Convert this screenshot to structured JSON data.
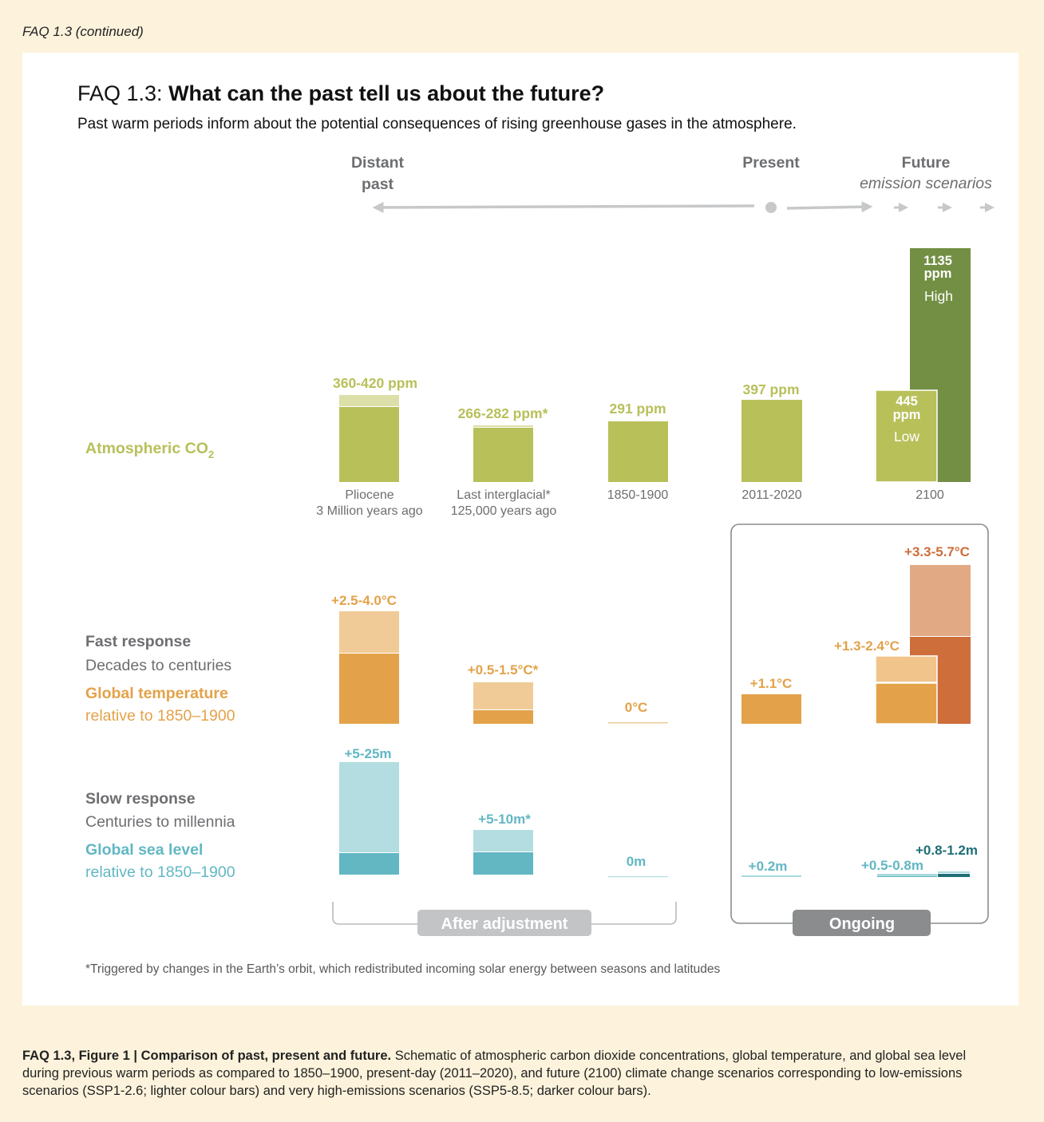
{
  "header": "FAQ 1.3 (continued)",
  "title_prefix": "FAQ 1.3: ",
  "title_bold": "What can the past tell us about the future?",
  "subtitle": "Past warm periods inform about the potential consequences of rising greenhouse gases in the atmosphere.",
  "timeline": {
    "distant_1": "Distant",
    "distant_2": "past",
    "present": "Present",
    "future_1": "Future",
    "future_2": "emission scenarios"
  },
  "rows": {
    "co2": "Atmospheric CO",
    "co2_sub": "2",
    "fast_1": "Fast response",
    "fast_2": "Decades to centuries",
    "temp_1": "Global temperature",
    "temp_2": "relative to 1850–1900",
    "slow_1": "Slow response",
    "slow_2": "Centuries to millennia",
    "sea_1": "Global sea level",
    "sea_2": "relative to 1850–1900"
  },
  "periods": [
    {
      "name": "Pliocene",
      "sub": "3 Million years ago"
    },
    {
      "name": "Last interglacial*",
      "sub": "125,000 years ago"
    },
    {
      "name": "1850-1900",
      "sub": ""
    },
    {
      "name": "2011-2020",
      "sub": ""
    },
    {
      "name": "2100",
      "sub": ""
    }
  ],
  "co2_labels": {
    "pliocene": "360-420 ppm",
    "interglacial": "266-282 ppm*",
    "preindustrial": "291 ppm",
    "present": "397 ppm",
    "low_value": "445",
    "low_unit": "ppm",
    "low_name": "Low",
    "high_value": "1135",
    "high_unit": "ppm",
    "high_name": "High"
  },
  "temp_labels": {
    "pliocene": "+2.5-4.0°C",
    "interglacial": "+0.5-1.5°C*",
    "preindustrial": "0°C",
    "present": "+1.1°C",
    "low": "+1.3-2.4°C",
    "high": "+3.3-5.7°C"
  },
  "sea_labels": {
    "pliocene": "+5-25m",
    "interglacial": "+5-10m*",
    "preindustrial": "0m",
    "present": "+0.2m",
    "low": "+0.5-0.8m",
    "high": "+0.8-1.2m"
  },
  "groups": {
    "after": "After adjustment",
    "ongoing": "Ongoing"
  },
  "footnote": "*Triggered by changes in the Earth’s orbit, which redistributed incoming solar energy between seasons and latitudes",
  "caption": {
    "bold": "FAQ 1.3, Figure 1 | Comparison of past, present and future.",
    "text": " Schematic of atmospheric carbon dioxide concentrations, global temperature, and global sea level during previous warm periods as compared to 1850–1900, present-day (2011–2020), and future (2100) climate change scenarios corresponding to low-emissions scenarios (SSP1-2.6; lighter colour bars) and very high-emissions scenarios (SSP5-8.5; darker colour bars)."
  },
  "chart_data": {
    "type": "bar",
    "categories": [
      "Pliocene",
      "Last interglacial*",
      "1850-1900",
      "2011-2020",
      "2100"
    ],
    "series": [
      {
        "name": "Atmospheric CO2",
        "unit": "ppm",
        "values": [
          [
            360,
            420
          ],
          [
            266,
            282
          ],
          [
            291,
            291
          ],
          [
            397,
            397
          ],
          {
            "low": 445,
            "high": 1135
          }
        ]
      },
      {
        "name": "Global temperature",
        "unit": "°C",
        "values": [
          [
            2.5,
            4.0
          ],
          [
            0.5,
            1.5
          ],
          [
            0,
            0
          ],
          [
            1.1,
            1.1
          ],
          {
            "low": [
              1.3,
              2.4
            ],
            "high": [
              3.3,
              5.7
            ]
          }
        ]
      },
      {
        "name": "Global sea level",
        "unit": "m",
        "values": [
          [
            5,
            25
          ],
          [
            5,
            10
          ],
          [
            0,
            0
          ],
          [
            0.2,
            0.2
          ],
          {
            "low": [
              0.5,
              0.8
            ],
            "high": [
              0.8,
              1.2
            ]
          }
        ]
      }
    ]
  },
  "colors": {
    "co2": "#b8c05a",
    "co2_light": "#dcdfa8",
    "co2_high": "#728f43",
    "temp": "#e3a24a",
    "temp_light": "#f0cb98",
    "temp_high": "#cd6e3b",
    "temp_high_light": "#e1aa84",
    "sea": "#62b7c3",
    "sea_light": "#b3dde1",
    "sea_high": "#1f6f78",
    "grey_text": "#6d6e71",
    "arrow": "#c6c8ca"
  }
}
